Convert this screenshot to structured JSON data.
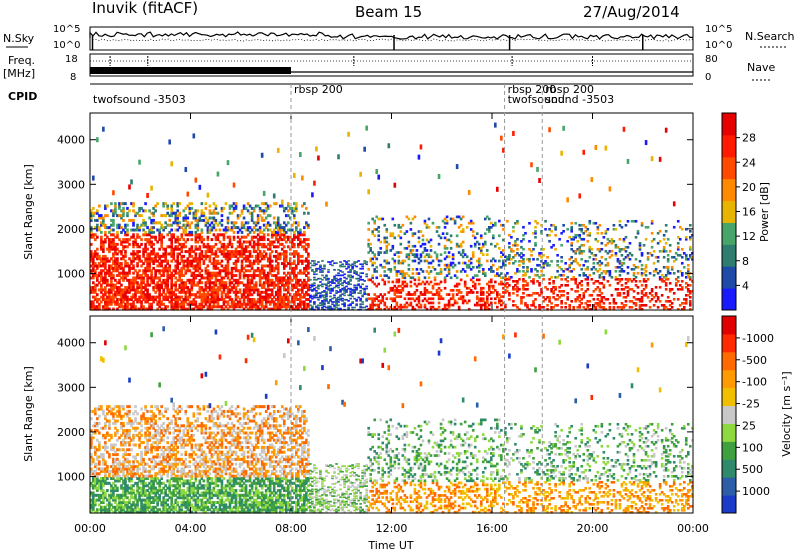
{
  "header": {
    "station": "Inuvik (fitACF)",
    "beam": "Beam 15",
    "date": "27/Aug/2014"
  },
  "strip_labels": {
    "nsky": "N.Sky",
    "nsearch": "N.Search",
    "freq_top": "Freq.",
    "freq_unit": "[MHz]",
    "nave": "Nave",
    "cpid": "CPID",
    "nsky_ticks": [
      "10^5",
      "10^0"
    ],
    "nsearch_ticks": [
      "10^5",
      "10^0"
    ],
    "freq_ticks": [
      "18",
      "8"
    ],
    "nave_ticks": [
      "80",
      "0"
    ]
  },
  "cpid_labels": [
    {
      "text": "twofsound -3503",
      "t": 0.0
    },
    {
      "text": "rbsp 200",
      "t": 8.0
    },
    {
      "text": "rbsp 200",
      "t": 16.5
    },
    {
      "text": "twofsound",
      "t": 16.5
    },
    {
      "text": "rbsp 200",
      "t": 18.0
    },
    {
      "text": "sound -3503",
      "t": 18.0
    }
  ],
  "mode_switch_times": [
    8.0,
    16.5,
    18.0
  ],
  "chart_data": [
    {
      "type": "heatmap",
      "panel": "power",
      "ylabel": "Slant Range [km]",
      "ylim": [
        180,
        4600
      ],
      "yticks": [
        1000,
        2000,
        3000,
        4000
      ],
      "xlim": [
        0,
        24
      ],
      "colorbar": {
        "label": "Power [dB]",
        "ticks": [
          "4",
          "8",
          "12",
          "16",
          "20",
          "24",
          "28"
        ],
        "colors": [
          "#1a1aff",
          "#1e4aa8",
          "#2e7d6e",
          "#47a56a",
          "#e8b400",
          "#ff8a00",
          "#ff4a00",
          "#ff1a00",
          "#e60000"
        ]
      }
    },
    {
      "type": "heatmap",
      "panel": "velocity",
      "ylabel": "Slant Range [km]",
      "ylim": [
        180,
        4600
      ],
      "yticks": [
        1000,
        2000,
        3000,
        4000
      ],
      "xlim": [
        0,
        24
      ],
      "xlabel": "Time UT",
      "xticks": [
        "00:00",
        "04:00",
        "08:00",
        "12:00",
        "16:00",
        "20:00",
        "00:00"
      ],
      "colorbar": {
        "label": "Velocity [m s⁻¹]",
        "ticks": [
          "1000",
          "500",
          "100",
          "25",
          "-25",
          "-100",
          "-500",
          "-1000"
        ],
        "colors": [
          "#1a3cc8",
          "#2c5ea8",
          "#2e8a6a",
          "#3fa040",
          "#8ed840",
          "#c8c8c8",
          "#f0c000",
          "#ff9a00",
          "#ff6a00",
          "#ff2a00",
          "#e00000"
        ]
      }
    }
  ]
}
